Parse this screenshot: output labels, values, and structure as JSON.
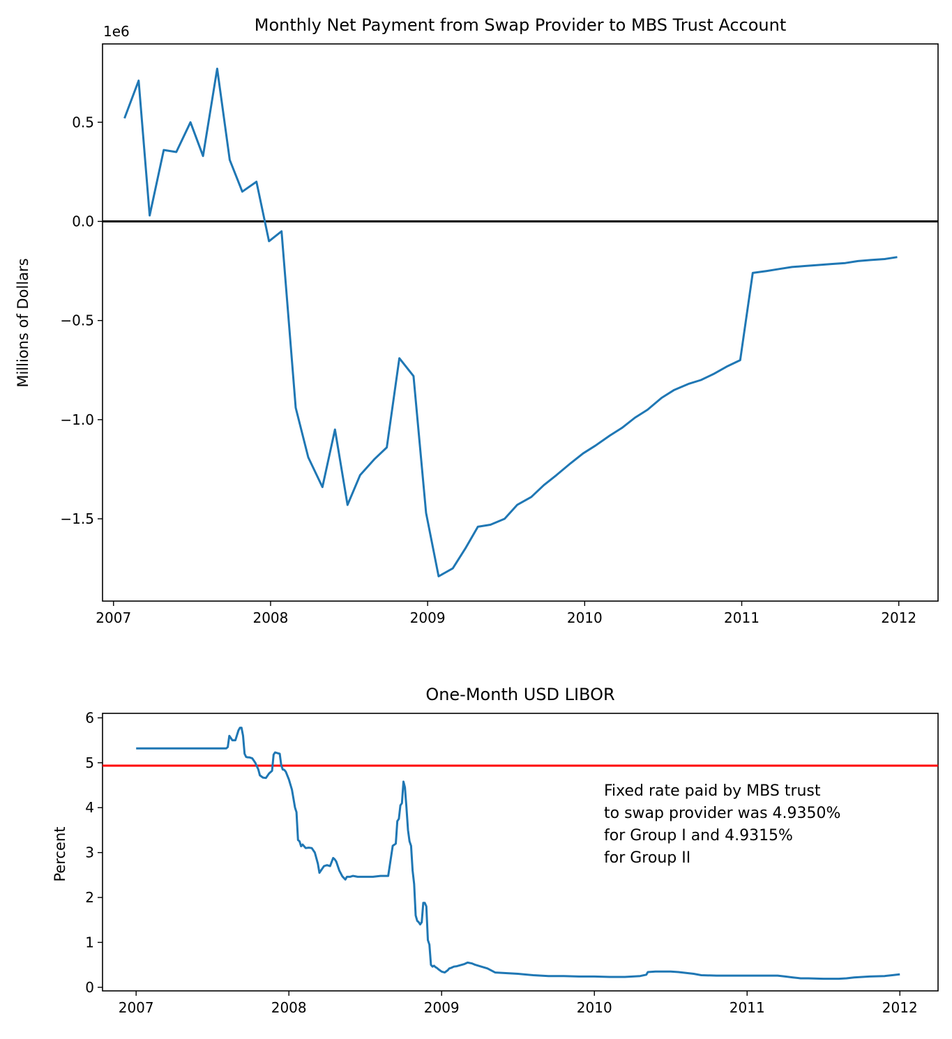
{
  "chart_data": [
    {
      "type": "line",
      "title": "Monthly Net Payment from Swap Provider to MBS Trust Account",
      "ylabel": "Millions of Dollars",
      "xlabel": "",
      "y_offset_text": "1e6",
      "xlim": [
        2006.93,
        2012.25
      ],
      "ylim": [
        -1.915,
        0.895
      ],
      "x_ticks": [
        2007,
        2008,
        2009,
        2010,
        2011,
        2012
      ],
      "x_tick_labels": [
        "2007",
        "2008",
        "2009",
        "2010",
        "2011",
        "2012"
      ],
      "y_ticks": [
        -1.5,
        -1.0,
        -0.5,
        0.0,
        0.5
      ],
      "y_tick_labels": [
        "−1.5",
        "−1.0",
        "−0.5",
        "0.0",
        "0.5"
      ],
      "hline": {
        "y": 0.0,
        "color": "#000000"
      },
      "series": [
        {
          "color": "#1f77b4",
          "x": [
            2007.07,
            2007.16,
            2007.23,
            2007.32,
            2007.4,
            2007.49,
            2007.57,
            2007.66,
            2007.74,
            2007.82,
            2007.91,
            2007.99,
            2008.07,
            2008.16,
            2008.24,
            2008.33,
            2008.41,
            2008.49,
            2008.57,
            2008.66,
            2008.74,
            2008.82,
            2008.91,
            2008.99,
            2009.07,
            2009.16,
            2009.24,
            2009.32,
            2009.4,
            2009.49,
            2009.57,
            2009.66,
            2009.74,
            2009.82,
            2009.91,
            2009.99,
            2010.07,
            2010.16,
            2010.24,
            2010.32,
            2010.4,
            2010.49,
            2010.57,
            2010.66,
            2010.74,
            2010.82,
            2010.91,
            2010.99,
            2011.07,
            2011.16,
            2011.24,
            2011.32,
            2011.4,
            2011.49,
            2011.57,
            2011.66,
            2011.74,
            2011.82,
            2011.91,
            2011.99
          ],
          "values": [
            0.52,
            0.71,
            0.03,
            0.36,
            0.35,
            0.5,
            0.33,
            0.77,
            0.31,
            0.15,
            0.2,
            -0.1,
            -0.05,
            -0.94,
            -1.19,
            -1.34,
            -1.05,
            -1.43,
            -1.28,
            -1.2,
            -1.14,
            -0.69,
            -0.78,
            -1.47,
            -1.79,
            -1.75,
            -1.65,
            -1.54,
            -1.53,
            -1.5,
            -1.43,
            -1.39,
            -1.33,
            -1.28,
            -1.22,
            -1.17,
            -1.13,
            -1.08,
            -1.04,
            -0.99,
            -0.95,
            -0.89,
            -0.85,
            -0.82,
            -0.8,
            -0.77,
            -0.73,
            -0.7,
            -0.26,
            -0.25,
            -0.24,
            -0.23,
            -0.225,
            -0.22,
            -0.215,
            -0.21,
            -0.2,
            -0.195,
            -0.19,
            -0.18
          ]
        }
      ]
    },
    {
      "type": "line",
      "title": "One-Month USD LIBOR",
      "ylabel": "Percent",
      "xlabel": "",
      "xlim": [
        2006.78,
        2012.25
      ],
      "ylim": [
        -0.08,
        6.1
      ],
      "x_ticks": [
        2007,
        2008,
        2009,
        2010,
        2011,
        2012
      ],
      "x_tick_labels": [
        "2007",
        "2008",
        "2009",
        "2010",
        "2011",
        "2012"
      ],
      "y_ticks": [
        0,
        1,
        2,
        3,
        4,
        5,
        6
      ],
      "y_tick_labels": [
        "0",
        "1",
        "2",
        "3",
        "4",
        "5",
        "6"
      ],
      "hline": {
        "y": 4.935,
        "color": "#ff0000"
      },
      "annotation": {
        "lines": [
          "Fixed rate paid by MBS trust",
          "to swap provider was 4.9350%",
          "for Group I and 4.9315%",
          "for Group II"
        ]
      },
      "series": [
        {
          "color": "#1f77b4",
          "x": [
            2007.0,
            2007.2,
            2007.4,
            2007.59,
            2007.6,
            2007.61,
            2007.63,
            2007.65,
            2007.67,
            2007.68,
            2007.69,
            2007.7,
            2007.71,
            2007.72,
            2007.73,
            2007.74,
            2007.76,
            2007.78,
            2007.8,
            2007.81,
            2007.83,
            2007.85,
            2007.87,
            2007.89,
            2007.9,
            2007.91,
            2007.92,
            2007.94,
            2007.95,
            2007.96,
            2007.97,
            2007.98,
            2008.0,
            2008.02,
            2008.04,
            2008.05,
            2008.06,
            2008.07,
            2008.08,
            2008.09,
            2008.11,
            2008.13,
            2008.15,
            2008.17,
            2008.19,
            2008.2,
            2008.21,
            2008.22,
            2008.23,
            2008.25,
            2008.27,
            2008.29,
            2008.3,
            2008.31,
            2008.33,
            2008.35,
            2008.37,
            2008.38,
            2008.4,
            2008.42,
            2008.45,
            2008.5,
            2008.55,
            2008.6,
            2008.65,
            2008.68,
            2008.7,
            2008.71,
            2008.72,
            2008.73,
            2008.74,
            2008.75,
            2008.76,
            2008.77,
            2008.78,
            2008.79,
            2008.8,
            2008.81,
            2008.82,
            2008.83,
            2008.84,
            2008.85,
            2008.86,
            2008.87,
            2008.88,
            2008.89,
            2008.9,
            2008.91,
            2008.92,
            2008.93,
            2008.94,
            2008.95,
            2008.96,
            2008.97,
            2008.98,
            2009.0,
            2009.02,
            2009.04,
            2009.05,
            2009.06,
            2009.08,
            2009.1,
            2009.12,
            2009.15,
            2009.17,
            2009.2,
            2009.22,
            2009.25,
            2009.3,
            2009.35,
            2009.4,
            2009.45,
            2009.5,
            2009.6,
            2009.7,
            2009.8,
            2009.9,
            2010.0,
            2010.1,
            2010.2,
            2010.3,
            2010.34,
            2010.35,
            2010.4,
            2010.5,
            2010.55,
            2010.6,
            2010.65,
            2010.7,
            2010.8,
            2010.9,
            2011.0,
            2011.1,
            2011.2,
            2011.25,
            2011.3,
            2011.35,
            2011.4,
            2011.5,
            2011.57,
            2011.6,
            2011.65,
            2011.7,
            2011.8,
            2011.9,
            2011.95,
            2012.0
          ],
          "values": [
            5.32,
            5.32,
            5.32,
            5.32,
            5.35,
            5.6,
            5.5,
            5.5,
            5.72,
            5.78,
            5.78,
            5.6,
            5.2,
            5.13,
            5.12,
            5.12,
            5.1,
            5.0,
            4.85,
            4.72,
            4.67,
            4.66,
            4.76,
            4.82,
            5.18,
            5.23,
            5.22,
            5.2,
            4.95,
            4.85,
            4.84,
            4.8,
            4.63,
            4.4,
            4.0,
            3.9,
            3.28,
            3.25,
            3.14,
            3.18,
            3.1,
            3.11,
            3.1,
            3.0,
            2.75,
            2.55,
            2.6,
            2.65,
            2.7,
            2.72,
            2.7,
            2.88,
            2.85,
            2.8,
            2.6,
            2.47,
            2.4,
            2.46,
            2.46,
            2.48,
            2.46,
            2.46,
            2.46,
            2.48,
            2.48,
            3.15,
            3.2,
            3.7,
            3.75,
            4.05,
            4.1,
            4.58,
            4.45,
            4.0,
            3.5,
            3.25,
            3.15,
            2.6,
            2.3,
            1.6,
            1.48,
            1.45,
            1.4,
            1.45,
            1.88,
            1.88,
            1.8,
            1.05,
            0.95,
            0.5,
            0.46,
            0.48,
            0.45,
            0.43,
            0.4,
            0.35,
            0.33,
            0.38,
            0.42,
            0.43,
            0.46,
            0.47,
            0.49,
            0.52,
            0.55,
            0.53,
            0.5,
            0.47,
            0.42,
            0.33,
            0.32,
            0.31,
            0.3,
            0.27,
            0.25,
            0.25,
            0.24,
            0.24,
            0.23,
            0.23,
            0.25,
            0.28,
            0.34,
            0.35,
            0.35,
            0.34,
            0.32,
            0.3,
            0.27,
            0.26,
            0.26,
            0.26,
            0.26,
            0.26,
            0.24,
            0.22,
            0.2,
            0.2,
            0.19,
            0.19,
            0.19,
            0.2,
            0.22,
            0.24,
            0.25,
            0.27,
            0.29
          ]
        }
      ]
    }
  ]
}
